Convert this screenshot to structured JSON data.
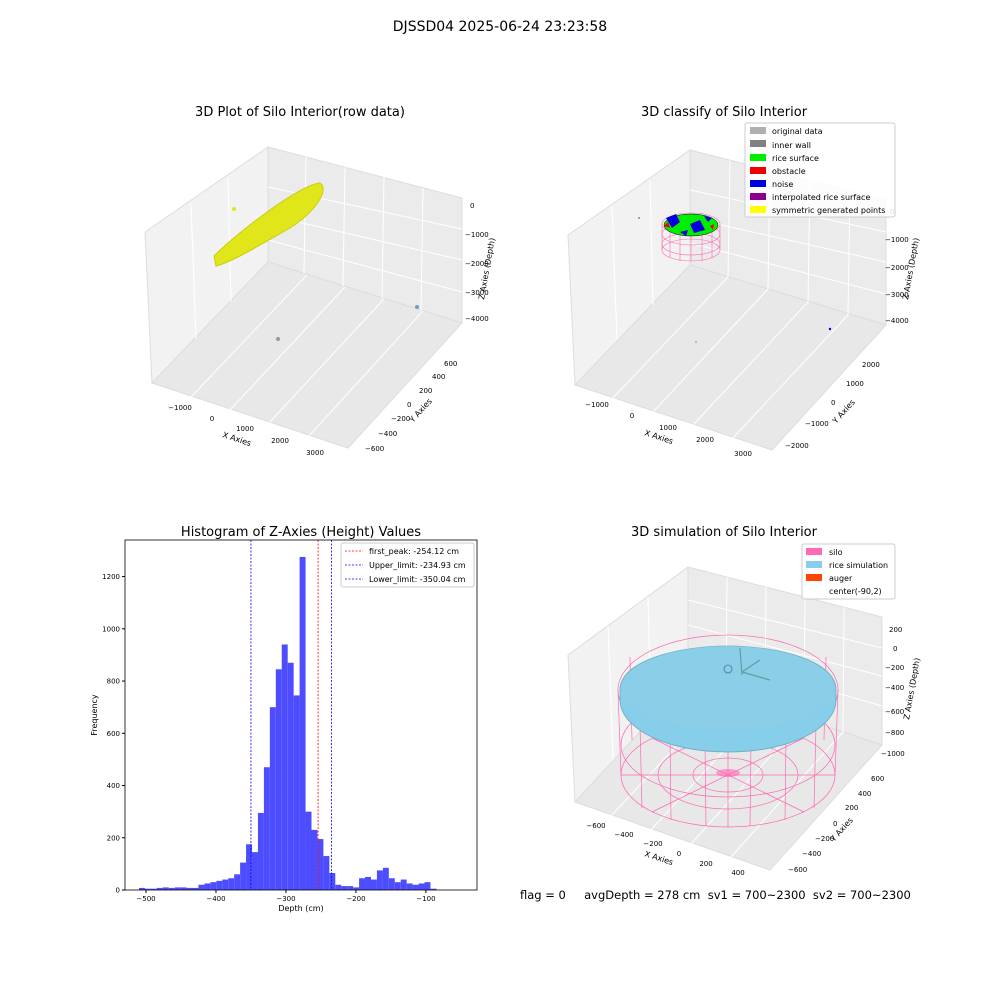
{
  "figure": {
    "suptitle": "DJSSD04 2025-06-24 23:23:58"
  },
  "chart_data": [
    {
      "type": "scatter",
      "title": "3D Plot of Silo Interior(row data)",
      "xlabel": "X Axies",
      "ylabel": "Y Axies",
      "zlabel": "Z Axies (Depth)",
      "x_ticks": [
        "−1000",
        "0",
        "1000",
        "2000",
        "3000"
      ],
      "y_ticks": [
        "−600",
        "−400",
        "−200",
        "0",
        "200",
        "400",
        "600"
      ],
      "z_ticks": [
        "0",
        "−1000",
        "−2000",
        "−3000",
        "−4000"
      ],
      "xlim": [
        -1500,
        3500
      ],
      "ylim": [
        -700,
        700
      ],
      "zlim": [
        -4500,
        300
      ],
      "colors": {
        "points": "#e0e619",
        "outlier_blue": "#6a9ed3",
        "outlier_gray": "#999999"
      }
    },
    {
      "type": "scatter",
      "title": "3D classify of Silo Interior",
      "xlabel": "X Axies",
      "ylabel": "Y Axies",
      "zlabel": "Z Axies (Depth)",
      "x_ticks": [
        "−1000",
        "0",
        "1000",
        "2000",
        "3000"
      ],
      "y_ticks": [
        "−2000",
        "−1000",
        "0",
        "1000",
        "2000"
      ],
      "z_ticks": [
        "0",
        "−1000",
        "−2000",
        "−3000",
        "−4000"
      ],
      "legend": [
        {
          "label": "original data",
          "color": "#b0b0b0"
        },
        {
          "label": "inner wall",
          "color": "#808080"
        },
        {
          "label": "rice surface",
          "color": "#00ee00"
        },
        {
          "label": "obstacle",
          "color": "#ee0000"
        },
        {
          "label": "noise",
          "color": "#0000dd"
        },
        {
          "label": "interpolated rice surface",
          "color": "#8b008b"
        },
        {
          "label": "symmetric generated points",
          "color": "#ffff00"
        }
      ],
      "legend_position": "top-right"
    },
    {
      "type": "bar",
      "title": "Histogram of Z-Axies (Height) Values",
      "xlabel": "Depth (cm)",
      "ylabel": "Frequency",
      "x_ticks": [
        -500,
        -400,
        -300,
        -200,
        -100
      ],
      "y_ticks": [
        0,
        200,
        400,
        600,
        800,
        1000,
        1200
      ],
      "xlim": [
        -530,
        -27
      ],
      "ylim": [
        0,
        1340
      ],
      "bin_start": -510,
      "bin_width": 8.5,
      "values": [
        8,
        5,
        5,
        8,
        10,
        8,
        10,
        10,
        8,
        8,
        20,
        25,
        30,
        35,
        40,
        45,
        60,
        105,
        175,
        145,
        295,
        470,
        700,
        845,
        940,
        870,
        745,
        1275,
        300,
        230,
        195,
        130,
        65,
        20,
        15,
        15,
        10,
        45,
        50,
        40,
        75,
        85,
        45,
        30,
        40,
        25,
        20,
        25,
        30,
        5
      ],
      "bar_color": "#4d4dff",
      "lines": [
        {
          "label": "first_peak: -254.12 cm",
          "x": -254.12,
          "color": "#ff0000"
        },
        {
          "label": "Upper_limit: -234.93 cm",
          "x": -234.93,
          "color": "#0000ff"
        },
        {
          "label": "Lower_limit: -350.04 cm",
          "x": -350.04,
          "color": "#0000ff"
        }
      ],
      "legend_position": "top-right"
    },
    {
      "type": "scatter",
      "title": "3D simulation of Silo Interior",
      "xlabel": "X Axies",
      "ylabel": "Y Axies",
      "zlabel": "Z Axies (Depth)",
      "x_ticks": [
        "−600",
        "−400",
        "−200",
        "0",
        "200",
        "400"
      ],
      "y_ticks": [
        "−600",
        "−400",
        "−200",
        "0",
        "200",
        "400",
        "600"
      ],
      "z_ticks": [
        "200",
        "0",
        "−200",
        "−400",
        "−600",
        "−800",
        "−1000"
      ],
      "legend": [
        {
          "label": "silo",
          "color": "#ff69b4"
        },
        {
          "label": "rice simulation",
          "color": "#87ceeb"
        },
        {
          "label": "auger",
          "color": "#ff4500"
        },
        {
          "label": "center(-90,2)",
          "color": ""
        }
      ],
      "legend_position": "top-right"
    }
  ],
  "footer": {
    "text": "flag = 0     avgDepth = 278 cm  sv1 = 700~2300  sv2 = 700~2300"
  }
}
